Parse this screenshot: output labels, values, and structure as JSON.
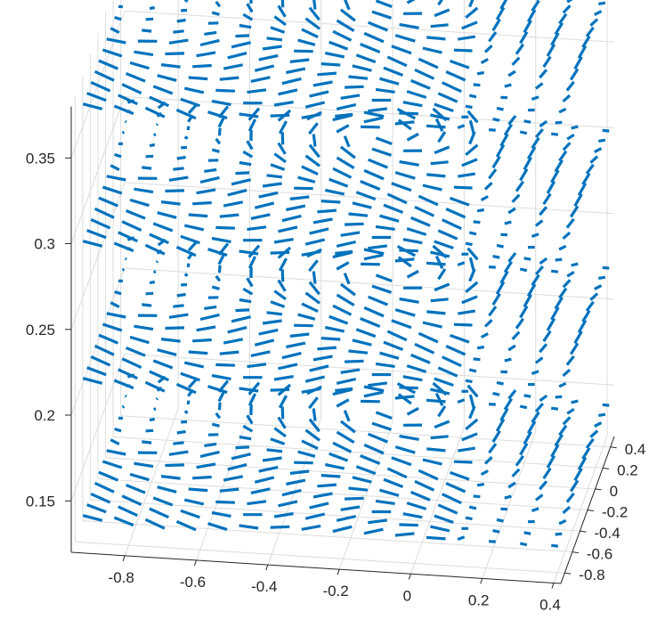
{
  "chart_data": {
    "type": "quiver3",
    "title": "",
    "xlabel": "",
    "ylabel": "",
    "zlabel": "",
    "xlim": [
      -0.95,
      0.42
    ],
    "ylim": [
      -0.9,
      0.5
    ],
    "zlim": [
      0.12,
      0.38
    ],
    "x_ticks": [
      -0.8,
      -0.6,
      -0.4,
      -0.2,
      0,
      0.2,
      0.4
    ],
    "x_tick_labels": [
      "-0.8",
      "-0.6",
      "-0.4",
      "-0.2",
      "0",
      "0.2",
      "0.4"
    ],
    "y_ticks": [
      0.4,
      0.2,
      0,
      -0.2,
      -0.4,
      -0.6,
      -0.8
    ],
    "y_tick_labels": [
      "0.4",
      "0.2",
      "0",
      "-0.2",
      "-0.4",
      "-0.6",
      "-0.8"
    ],
    "z_ticks": [
      0.35,
      0.3,
      0.25,
      0.2,
      0.15
    ],
    "z_tick_labels": [
      "0.35",
      "0.3",
      "0.25",
      "0.2",
      "0.15"
    ],
    "slice_levels": [
      0.14,
      0.22,
      0.3,
      0.38
    ],
    "grid": true,
    "color": "#0072bd",
    "field": "planar vortex with a seam, uniform field repeated on each z-level"
  }
}
